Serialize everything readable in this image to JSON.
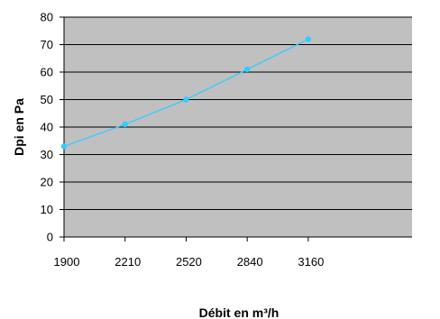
{
  "chart_data": {
    "type": "line",
    "title": "",
    "xlabel": "Débit en m³/h",
    "ylabel": "Dpi en Pa",
    "categories": [
      "1900",
      "2210",
      "2520",
      "2840",
      "3160"
    ],
    "series": [
      {
        "values": [
          33,
          41,
          50,
          61,
          72
        ]
      }
    ],
    "ylim": [
      0,
      80
    ],
    "yticks": [
      0,
      10,
      20,
      30,
      40,
      50,
      60,
      70,
      80
    ],
    "grid": true,
    "legend": "none",
    "colors": {
      "plot_background": "#c0c0c0",
      "gridline": "#000000",
      "line": "#33ccff",
      "marker": "#33ccff"
    }
  }
}
